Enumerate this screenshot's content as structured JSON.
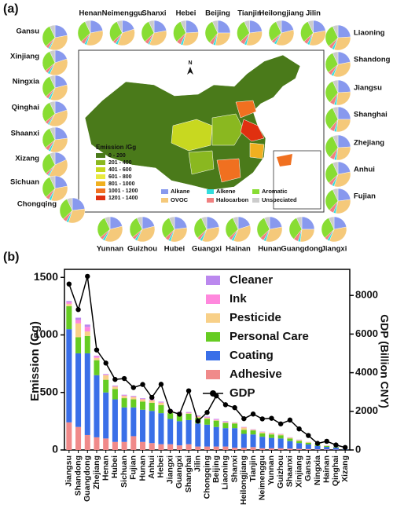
{
  "chart_data": [
    {
      "type": "pie-map",
      "title": "(a)",
      "north_label": "N",
      "legend_title": "Emission /Gg",
      "classes": [
        {
          "label": "0 - 200",
          "color": "#4a7a1a"
        },
        {
          "label": "201 - 400",
          "color": "#8ab820"
        },
        {
          "label": "401 - 600",
          "color": "#c8d820"
        },
        {
          "label": "601 - 800",
          "color": "#eaea40"
        },
        {
          "label": "801 - 1000",
          "color": "#f0b020"
        },
        {
          "label": "1001 - 1200",
          "color": "#f07020"
        },
        {
          "label": "1201 - 1400",
          "color": "#e03010"
        }
      ],
      "components": [
        "Alkane",
        "OVOC",
        "Alkene",
        "Halocarbon",
        "Aromatic",
        "Unspeciated"
      ],
      "colors": [
        "#8899ee",
        "#f5c97a",
        "#33dddd",
        "#f08080",
        "#88dd33",
        "#cccccc"
      ],
      "pies": [
        {
          "name": "Henan",
          "values": [
            22,
            33,
            3,
            5,
            30,
            7
          ]
        },
        {
          "name": "Neimenggu",
          "values": [
            20,
            36,
            3,
            4,
            30,
            7
          ]
        },
        {
          "name": "Shanxi",
          "values": [
            22,
            34,
            2,
            5,
            30,
            7
          ]
        },
        {
          "name": "Hebei",
          "values": [
            24,
            30,
            3,
            6,
            30,
            7
          ]
        },
        {
          "name": "Beijing",
          "values": [
            25,
            28,
            3,
            5,
            32,
            7
          ]
        },
        {
          "name": "Tianjin",
          "values": [
            23,
            31,
            3,
            6,
            30,
            7
          ]
        },
        {
          "name": "Heilongjiang",
          "values": [
            21,
            36,
            3,
            4,
            29,
            7
          ]
        },
        {
          "name": "Jilin",
          "values": [
            22,
            33,
            3,
            5,
            30,
            7
          ]
        },
        {
          "name": "Gansu",
          "values": [
            22,
            35,
            2,
            4,
            30,
            7
          ]
        },
        {
          "name": "Xinjiang",
          "values": [
            20,
            37,
            3,
            4,
            29,
            7
          ]
        },
        {
          "name": "Ningxia",
          "values": [
            21,
            35,
            3,
            4,
            30,
            7
          ]
        },
        {
          "name": "Qinghai",
          "values": [
            20,
            38,
            2,
            4,
            29,
            7
          ]
        },
        {
          "name": "Shaanxi",
          "values": [
            23,
            33,
            3,
            5,
            29,
            7
          ]
        },
        {
          "name": "Xizang",
          "values": [
            18,
            40,
            2,
            3,
            30,
            7
          ]
        },
        {
          "name": "Sichuan",
          "values": [
            22,
            33,
            3,
            5,
            30,
            7
          ]
        },
        {
          "name": "Chongqing",
          "values": [
            23,
            32,
            3,
            5,
            30,
            7
          ]
        },
        {
          "name": "Liaoning",
          "values": [
            24,
            31,
            3,
            5,
            30,
            7
          ]
        },
        {
          "name": "Shandong",
          "values": [
            22,
            34,
            3,
            5,
            29,
            7
          ]
        },
        {
          "name": "Jiangsu",
          "values": [
            24,
            28,
            3,
            6,
            32,
            7
          ]
        },
        {
          "name": "Shanghai",
          "values": [
            25,
            27,
            3,
            6,
            32,
            7
          ]
        },
        {
          "name": "Zhejiang",
          "values": [
            24,
            28,
            3,
            6,
            32,
            7
          ]
        },
        {
          "name": "Anhui",
          "values": [
            22,
            33,
            3,
            5,
            30,
            7
          ]
        },
        {
          "name": "Fujian",
          "values": [
            23,
            30,
            3,
            6,
            31,
            7
          ]
        },
        {
          "name": "Yunnan",
          "values": [
            21,
            36,
            3,
            4,
            29,
            7
          ]
        },
        {
          "name": "Guizhou",
          "values": [
            21,
            36,
            3,
            4,
            29,
            7
          ]
        },
        {
          "name": "Hubei",
          "values": [
            23,
            32,
            3,
            5,
            30,
            7
          ]
        },
        {
          "name": "Guangxi",
          "values": [
            22,
            34,
            3,
            4,
            30,
            7
          ]
        },
        {
          "name": "Hainan",
          "values": [
            20,
            36,
            3,
            4,
            30,
            7
          ]
        },
        {
          "name": "Hunan",
          "values": [
            22,
            33,
            3,
            5,
            30,
            7
          ]
        },
        {
          "name": "Guangdong",
          "values": [
            25,
            27,
            3,
            6,
            32,
            7
          ]
        },
        {
          "name": "Jiangxi",
          "values": [
            22,
            34,
            3,
            4,
            30,
            7
          ]
        }
      ]
    },
    {
      "type": "stacked-bar-line",
      "title": "(b)",
      "y_label": "Emission (Gg)",
      "y2_label": "GDP (Billion CNY)",
      "categories": [
        "Jiangsu",
        "Shandong",
        "Guangdong",
        "Zhejiang",
        "Henan",
        "Hubei",
        "Sichuan",
        "Fujian",
        "Hunan",
        "Anhui",
        "Hebei",
        "Jiangxi",
        "Guangxi",
        "Shanghai",
        "Jilin",
        "Chongqing",
        "Beijing",
        "Liaoning",
        "Shanxi",
        "Heilongjiang",
        "Tianjin",
        "Neimenggu",
        "Yunnan",
        "Guizhou",
        "Shaanxi",
        "Xinjiang",
        "Gansu",
        "Ningxia",
        "Hainan",
        "Qinghai",
        "Xizang"
      ],
      "ylim": [
        0,
        1570
      ],
      "yticks": [
        0,
        500,
        1000,
        1500
      ],
      "y2lim": [
        0,
        9350
      ],
      "y2ticks": [
        0,
        2000,
        4000,
        6000,
        8000
      ],
      "series": [
        {
          "name": "Adhesive",
          "color": "#f08a8a",
          "values": [
            240,
            200,
            130,
            110,
            100,
            70,
            70,
            120,
            70,
            60,
            50,
            50,
            40,
            50,
            30,
            30,
            30,
            30,
            20,
            20,
            25,
            15,
            15,
            15,
            12,
            10,
            8,
            5,
            5,
            3,
            1
          ]
        },
        {
          "name": "Coating",
          "color": "#3a6fe8",
          "values": [
            810,
            640,
            710,
            540,
            400,
            370,
            300,
            250,
            280,
            280,
            270,
            220,
            210,
            210,
            200,
            190,
            170,
            160,
            170,
            120,
            110,
            100,
            90,
            85,
            65,
            50,
            40,
            30,
            22,
            17,
            5
          ]
        },
        {
          "name": "Personal Care",
          "color": "#66cc22",
          "values": [
            200,
            140,
            150,
            130,
            110,
            90,
            80,
            70,
            70,
            70,
            70,
            50,
            50,
            55,
            50,
            50,
            55,
            45,
            40,
            35,
            35,
            30,
            30,
            28,
            22,
            18,
            15,
            10,
            8,
            6,
            2
          ]
        },
        {
          "name": "Pesticide",
          "color": "#f8d088",
          "values": [
            20,
            120,
            40,
            20,
            40,
            20,
            20,
            20,
            20,
            20,
            20,
            20,
            20,
            5,
            10,
            10,
            5,
            5,
            5,
            20,
            5,
            10,
            10,
            7,
            7,
            8,
            5,
            3,
            3,
            2,
            1
          ]
        },
        {
          "name": "Ink",
          "color": "#ff88dd",
          "values": [
            15,
            30,
            40,
            15,
            5,
            5,
            5,
            5,
            5,
            5,
            5,
            5,
            5,
            5,
            5,
            5,
            5,
            5,
            3,
            3,
            3,
            3,
            3,
            3,
            2,
            2,
            1,
            1,
            1,
            1,
            0.5
          ]
        },
        {
          "name": "Cleaner",
          "color": "#bb88ee",
          "values": [
            10,
            20,
            20,
            5,
            5,
            5,
            5,
            5,
            5,
            5,
            5,
            5,
            5,
            5,
            5,
            5,
            5,
            5,
            2,
            2,
            2,
            2,
            2,
            2,
            2,
            2,
            1,
            1,
            1,
            1,
            0.5
          ]
        },
        {
          "name": "GDP",
          "color": "#000000",
          "axis": "y2",
          "type": "line",
          "values": [
            8590,
            7268,
            8988,
            5177,
            4499,
            3652,
            3698,
            3230,
            3390,
            2719,
            3401,
            2005,
            1852,
            3063,
            1495,
            1942,
            2800,
            2343,
            2190,
            1620,
            1860,
            1610,
            1640,
            1350,
            1550,
            1090,
            750,
            340,
            450,
            260,
            130
          ]
        }
      ]
    }
  ]
}
